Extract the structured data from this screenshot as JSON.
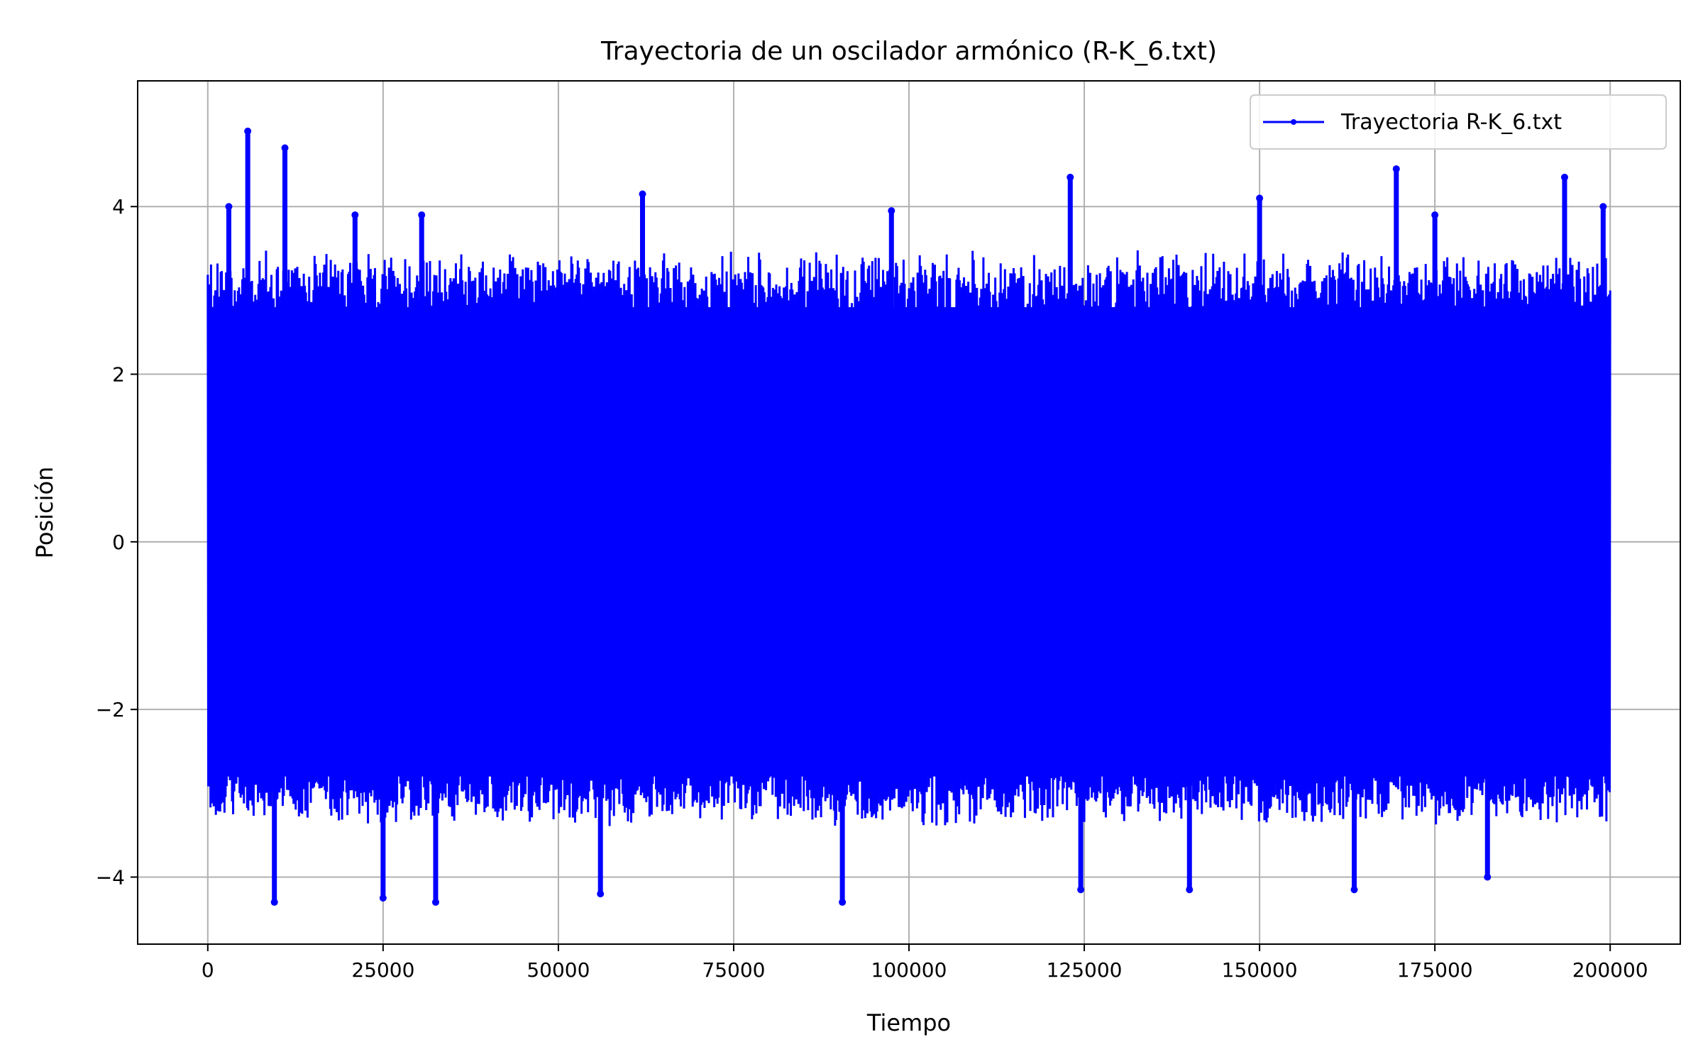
{
  "chart_data": {
    "type": "line",
    "title": "Trayectoria de un oscilador armónico (R-K_6.txt)",
    "xlabel": "Tiempo",
    "ylabel": "Posición",
    "xlim": [
      -10000,
      210000
    ],
    "ylim": [
      -4.8,
      5.5
    ],
    "x_ticks": [
      0,
      25000,
      50000,
      75000,
      100000,
      125000,
      150000,
      175000,
      200000
    ],
    "x_tick_labels": [
      "0",
      "25000",
      "50000",
      "75000",
      "100000",
      "125000",
      "150000",
      "175000",
      "200000"
    ],
    "y_ticks": [
      -4,
      -2,
      0,
      2,
      4
    ],
    "y_tick_labels": [
      "−4",
      "−2",
      "0",
      "2",
      "4"
    ],
    "grid": true,
    "legend_position": "top-right",
    "series": [
      {
        "name": "Trayectoria R-K_6.txt",
        "color": "#0000ff",
        "marker": "dot",
        "x_range": [
          0,
          200000
        ],
        "envelope_upper_typical": 3.0,
        "envelope_lower_typical": -3.0,
        "peak_max": [
          [
            5700,
            4.9
          ],
          [
            11000,
            4.7
          ],
          [
            3000,
            4.0
          ],
          [
            21000,
            3.9
          ],
          [
            30500,
            3.9
          ],
          [
            62000,
            4.15
          ],
          [
            97500,
            3.95
          ],
          [
            123000,
            4.35
          ],
          [
            150000,
            4.1
          ],
          [
            169500,
            4.45
          ],
          [
            175000,
            3.9
          ],
          [
            193500,
            4.35
          ],
          [
            199000,
            4.0
          ]
        ],
        "peak_min": [
          [
            9500,
            -4.3
          ],
          [
            25000,
            -4.25
          ],
          [
            32500,
            -4.3
          ],
          [
            56000,
            -4.2
          ],
          [
            90500,
            -4.3
          ],
          [
            124500,
            -4.15
          ],
          [
            140000,
            -4.15
          ],
          [
            163500,
            -4.15
          ],
          [
            182500,
            -4.0
          ]
        ]
      }
    ]
  }
}
